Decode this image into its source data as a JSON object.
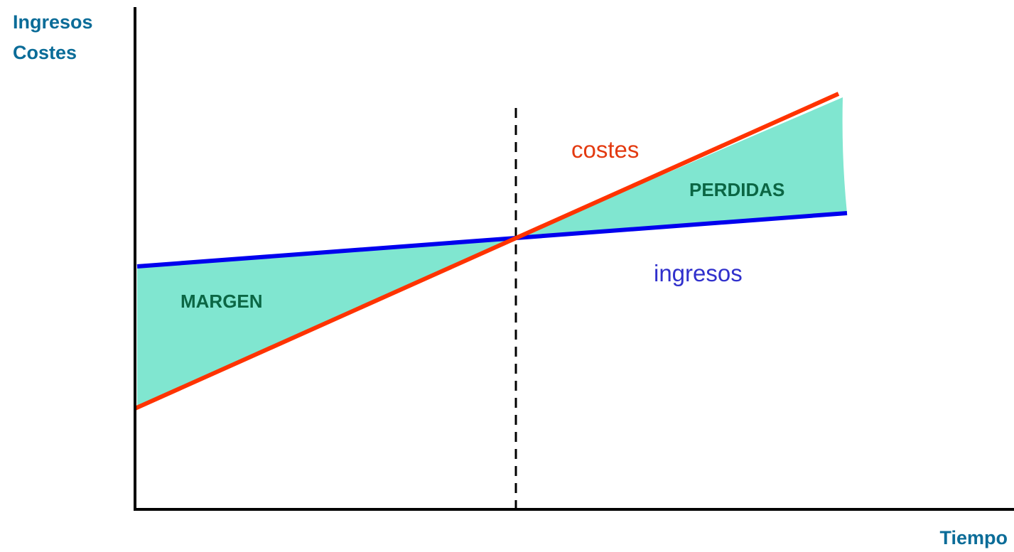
{
  "axes": {
    "y_label": [
      "Ingresos",
      "Costes"
    ],
    "x_label": "Tiempo"
  },
  "lines": [
    {
      "label": "costes"
    },
    {
      "label": "ingresos"
    }
  ],
  "regions": [
    {
      "label": "MARGEN"
    },
    {
      "label": "PERDIDAS"
    }
  ]
}
